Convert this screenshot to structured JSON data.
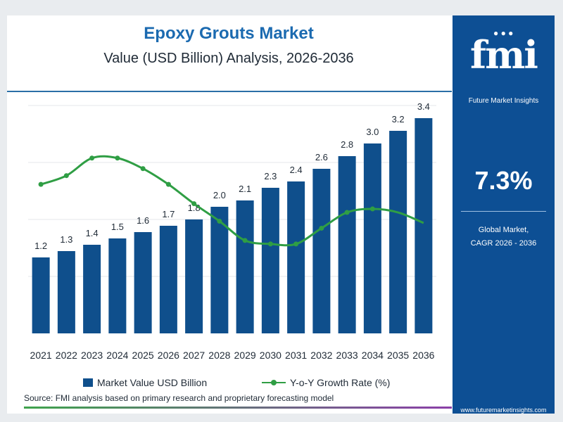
{
  "header": {
    "title": "Epoxy Grouts Market",
    "subtitle": "Value (USD Billion) Analysis, 2026-2036"
  },
  "chart_data": {
    "type": "bar",
    "categories": [
      "2021",
      "2022",
      "2023",
      "2024",
      "2025",
      "2026",
      "2027",
      "2028",
      "2029",
      "2030",
      "2031",
      "2032",
      "2033",
      "2034",
      "2035",
      "2036"
    ],
    "series": [
      {
        "name": "Market Value USD Billion",
        "type": "bar",
        "values": [
          1.2,
          1.3,
          1.4,
          1.5,
          1.6,
          1.7,
          1.8,
          2.0,
          2.1,
          2.3,
          2.4,
          2.6,
          2.8,
          3.0,
          3.2,
          3.4
        ],
        "labels": [
          "1.2",
          "1.3",
          "1.4",
          "1.5",
          "1.6",
          "1.7",
          "1.8",
          "2.0",
          "2.1",
          "2.3",
          "2.4",
          "2.6",
          "2.8",
          "3.0",
          "3.2",
          "3.4"
        ]
      },
      {
        "name": "Y-o-Y Growth Rate (%)",
        "type": "line",
        "values": [
          8.5,
          9.0,
          10.0,
          10.0,
          9.4,
          8.5,
          7.4,
          6.4,
          5.3,
          5.1,
          5.1,
          6.0,
          6.9,
          7.1,
          6.9,
          6.3
        ]
      }
    ],
    "ylim": [
      0,
      3.6
    ],
    "ylim_growth": [
      0,
      13
    ],
    "grid": true,
    "legend_position": "bottom"
  },
  "legend": {
    "bar_label": "Market Value USD Billion",
    "line_label": "Y-o-Y Growth Rate (%)"
  },
  "source": "Source: FMI analysis based on primary research and proprietary forecasting model",
  "panel": {
    "brand_letters": "fmi",
    "brand_name": "Future Market Insights",
    "cagr_value": "7.3%",
    "cagr_label_line1": "Global Market,",
    "cagr_label_line2": "CAGR 2026 - 2036",
    "url": "www.futuremarketinsights.com"
  },
  "colors": {
    "bar": "#0f4f8c",
    "line": "#2f9e44",
    "title": "#1b6ab0",
    "panel": "#0d4f94"
  }
}
